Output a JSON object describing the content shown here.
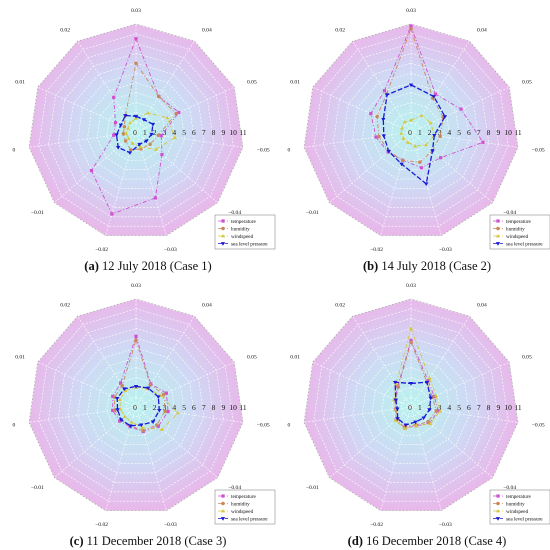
{
  "colors": {
    "temperature": "#d050d0",
    "humidity": "#c8885a",
    "windspeed": "#d6c63c",
    "sea_level_pressure": "#1a1ad8",
    "outer_fill": "#e8b8ea",
    "inner_fill": "#b8f2ee",
    "grid": "#ffffff"
  },
  "legend": [
    "temperature",
    "humidity",
    "windspeed",
    "sea level pressure"
  ],
  "chart_data": [
    {
      "type": "radar",
      "panel": "a",
      "caption_letter": "(a)",
      "caption_text": " 12 July 2018 (Case 1)",
      "spoke_labels": [
        "0.03",
        "0.04",
        "0.05",
        "−0.05",
        "−0.04",
        "−0.03",
        "−0.02",
        "−0.01",
        "0",
        "0.01",
        "0.02"
      ],
      "ring_labels": [
        "0",
        "1",
        "2",
        "3",
        "4",
        "5",
        "6",
        "7",
        "8",
        "9",
        "10",
        "11"
      ],
      "rmax": 11,
      "series": [
        {
          "name": "temperature",
          "values": [
            9.5,
            4.3,
            4.8,
            2.6,
            3.5,
            7.0,
            8.7,
            6.0,
            2.3,
            2.3,
            4.2
          ]
        },
        {
          "name": "humidity",
          "values": [
            7.0,
            4.3,
            4.5,
            2.3,
            1.9,
            1.8,
            1.9,
            1.4,
            1.3,
            1.3,
            2.0
          ]
        },
        {
          "name": "windspeed",
          "values": [
            1.4,
            2.3,
            3.5,
            4.0,
            2.7,
            1.6,
            1.2,
            1.0,
            1.0,
            0.9,
            1.1
          ]
        },
        {
          "name": "sea level pressure",
          "values": [
            1.6,
            1.5,
            1.9,
            1.6,
            1.4,
            1.3,
            2.2,
            2.4,
            2.0,
            1.7,
            2.0
          ]
        }
      ]
    },
    {
      "type": "radar",
      "panel": "b",
      "caption_letter": "(b)",
      "caption_text": " 14 July 2018 (Case 2)",
      "spoke_labels": [
        "0.03",
        "0.04",
        "0.05",
        "−0.05",
        "−0.04",
        "−0.03",
        "−0.02",
        "−0.01",
        "0",
        "0.01",
        "0.02"
      ],
      "ring_labels": [
        "0",
        "1",
        "2",
        "3",
        "4",
        "5",
        "6",
        "7",
        "8",
        "9",
        "10",
        "11"
      ],
      "rmax": 11,
      "series": [
        {
          "name": "temperature",
          "values": [
            10.8,
            4.6,
            5.6,
            7.4,
            4.0,
            3.8,
            3.0,
            3.1,
            3.6,
            4.5,
            5.0
          ]
        },
        {
          "name": "humidity",
          "values": [
            10.5,
            4.1,
            3.6,
            3.0,
            2.9,
            3.2,
            3.0,
            3.0,
            3.3,
            3.8,
            4.6
          ]
        },
        {
          "name": "windspeed",
          "values": [
            1.2,
            2.0,
            2.2,
            2.4,
            2.0,
            1.5,
            1.1,
            1.0,
            1.0,
            1.0,
            1.2
          ]
        },
        {
          "name": "sea level pressure",
          "values": [
            4.8,
            4.3,
            3.8,
            2.4,
            2.9,
            5.5,
            3.4,
            3.0,
            2.8,
            3.1,
            4.5
          ]
        }
      ]
    },
    {
      "type": "radar",
      "panel": "c",
      "caption_letter": "(c)",
      "caption_text": " 11 December 2018 (Case 3)",
      "spoke_labels": [
        "0.03",
        "0.04",
        "0.05",
        "−0.05",
        "−0.04",
        "−0.03",
        "−0.02",
        "−0.01",
        "0",
        "0.01",
        "0.02"
      ],
      "ring_labels": [
        "0",
        "1",
        "2",
        "3",
        "4",
        "5",
        "6",
        "7",
        "8",
        "9",
        "10",
        "11"
      ],
      "rmax": 11,
      "series": [
        {
          "name": "temperature",
          "values": [
            7.2,
            2.8,
            3.4,
            3.3,
            3.0,
            2.6,
            2.1,
            2.2,
            2.4,
            2.6,
            2.9
          ]
        },
        {
          "name": "humidity",
          "values": [
            6.8,
            2.7,
            3.1,
            3.0,
            2.8,
            2.5,
            2.0,
            2.0,
            2.2,
            2.4,
            2.6
          ]
        },
        {
          "name": "windspeed",
          "values": [
            2.0,
            2.2,
            2.8,
            4.3,
            3.5,
            2.2,
            1.6,
            1.5,
            1.6,
            1.8,
            2.0
          ]
        },
        {
          "name": "sea level pressure",
          "values": [
            2.1,
            2.3,
            2.5,
            2.4,
            2.3,
            1.9,
            2.0,
            2.0,
            1.9,
            2.1,
            2.2
          ]
        }
      ]
    },
    {
      "type": "radar",
      "panel": "d",
      "caption_letter": "(d)",
      "caption_text": " 16 December 2018 (Case 4)",
      "spoke_labels": [
        "0.03",
        "0.04",
        "0.05",
        "−0.05",
        "−0.04",
        "−0.03",
        "−0.02",
        "−0.01",
        "0",
        "0.01",
        "0.02"
      ],
      "ring_labels": [
        "0",
        "1",
        "2",
        "3",
        "4",
        "5",
        "6",
        "7",
        "8",
        "9",
        "10",
        "11"
      ],
      "rmax": 11,
      "series": [
        {
          "name": "temperature",
          "values": [
            6.8,
            3.2,
            2.6,
            2.8,
            2.5,
            2.0,
            2.2,
            2.0,
            1.6,
            1.8,
            2.5
          ]
        },
        {
          "name": "humidity",
          "values": [
            6.6,
            3.0,
            2.4,
            2.6,
            2.3,
            1.9,
            2.0,
            1.9,
            1.5,
            1.7,
            2.4
          ]
        },
        {
          "name": "windspeed",
          "values": [
            8.0,
            3.5,
            2.8,
            3.0,
            2.6,
            2.0,
            2.3,
            2.1,
            1.6,
            1.9,
            2.8
          ]
        },
        {
          "name": "sea level pressure",
          "values": [
            2.4,
            3.0,
            2.2,
            1.9,
            1.7,
            1.6,
            1.9,
            1.8,
            1.4,
            1.7,
            3.0
          ]
        }
      ]
    }
  ]
}
